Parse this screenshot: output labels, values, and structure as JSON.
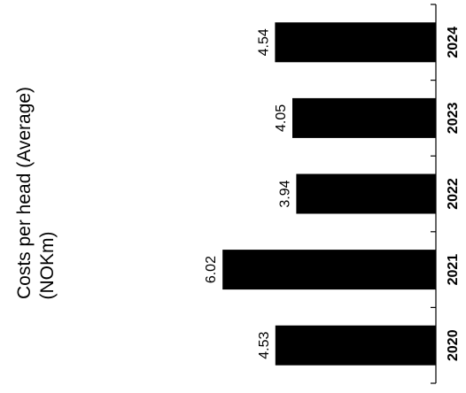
{
  "chart_data": {
    "type": "bar",
    "orientation": "rotated-90-ccw",
    "categories": [
      "2020",
      "2021",
      "2022",
      "2023",
      "2024"
    ],
    "values": [
      4.53,
      6.02,
      3.94,
      4.05,
      4.54
    ],
    "value_labels": [
      "4.53",
      "6.02",
      "3.94",
      "4.05",
      "4.54"
    ],
    "ylabel_lines": [
      "Costs per head (Average)",
      "(NOKm)"
    ],
    "xlabel": "",
    "ylim": [
      0,
      7
    ],
    "grid": false,
    "legend": "none",
    "colors": {
      "bar": "#000000",
      "axis": "#000000",
      "background": "#ffffff"
    }
  }
}
